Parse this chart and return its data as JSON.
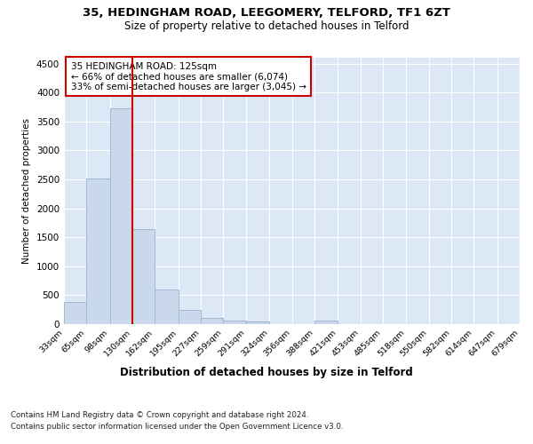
{
  "title": "35, HEDINGHAM ROAD, LEEGOMERY, TELFORD, TF1 6ZT",
  "subtitle": "Size of property relative to detached houses in Telford",
  "xlabel": "Distribution of detached houses by size in Telford",
  "ylabel": "Number of detached properties",
  "bin_edges": [
    33,
    65,
    98,
    130,
    162,
    195,
    227,
    259,
    291,
    324,
    356,
    388,
    421,
    453,
    485,
    518,
    550,
    582,
    614,
    647,
    679
  ],
  "bar_heights": [
    380,
    2510,
    3730,
    1640,
    600,
    245,
    105,
    60,
    40,
    0,
    0,
    60,
    0,
    0,
    0,
    0,
    0,
    0,
    0,
    0
  ],
  "bar_color": "#c9d9eb",
  "bar_edge_color": "#a0b8d0",
  "property_line_x": 130,
  "property_line_color": "#cc0000",
  "ylim": [
    0,
    4600
  ],
  "yticks": [
    0,
    500,
    1000,
    1500,
    2000,
    2500,
    3000,
    3500,
    4000,
    4500
  ],
  "annotation_text": "35 HEDINGHAM ROAD: 125sqm\n← 66% of detached houses are smaller (6,074)\n33% of semi-detached houses are larger (3,045) →",
  "annotation_bbox_edge": "#cc0000",
  "annotation_bbox_face": "#ffffff",
  "footer_line1": "Contains HM Land Registry data © Crown copyright and database right 2024.",
  "footer_line2": "Contains public sector information licensed under the Open Government Licence v3.0.",
  "fig_bg_color": "#ffffff",
  "plot_bg_color": "#dce8f5",
  "grid_color": "#ffffff"
}
